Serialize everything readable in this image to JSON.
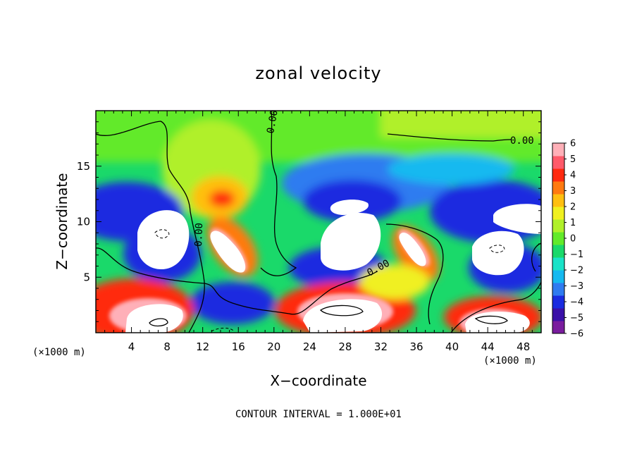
{
  "chart_data": {
    "type": "heatmap",
    "title": "zonal velocity",
    "xlabel": "X−coordinate",
    "ylabel": "Z−coordinate",
    "x_unit_left": "(×1000 m)",
    "x_unit_right": "(×1000 m)",
    "xlim": [
      0,
      50
    ],
    "ylim": [
      0,
      20
    ],
    "x_ticks": [
      4,
      8,
      12,
      16,
      20,
      24,
      28,
      32,
      36,
      40,
      44,
      48
    ],
    "y_ticks": [
      5,
      10,
      15
    ],
    "colorbar": {
      "ticks": [
        "6",
        "5",
        "4",
        "3",
        "2",
        "1",
        "0",
        "−1",
        "−2",
        "−3",
        "−4",
        "−5",
        "−6"
      ],
      "min": -6,
      "max": 6,
      "colors": [
        "#7a1c9e",
        "#3a10a8",
        "#1a2be0",
        "#2f7bf0",
        "#15b9f0",
        "#1ae3c8",
        "#1ad96a",
        "#62ea2a",
        "#b0f02a",
        "#f0f020",
        "#ffbf10",
        "#ff7a10",
        "#ff2a10",
        "#ff5a6a",
        "#ffb0b8"
      ]
    },
    "contour_labels": [
      "0.00",
      "0.00",
      "0.00",
      "0.00"
    ],
    "note": "CONTOUR INTERVAL = 1.000E+01"
  }
}
